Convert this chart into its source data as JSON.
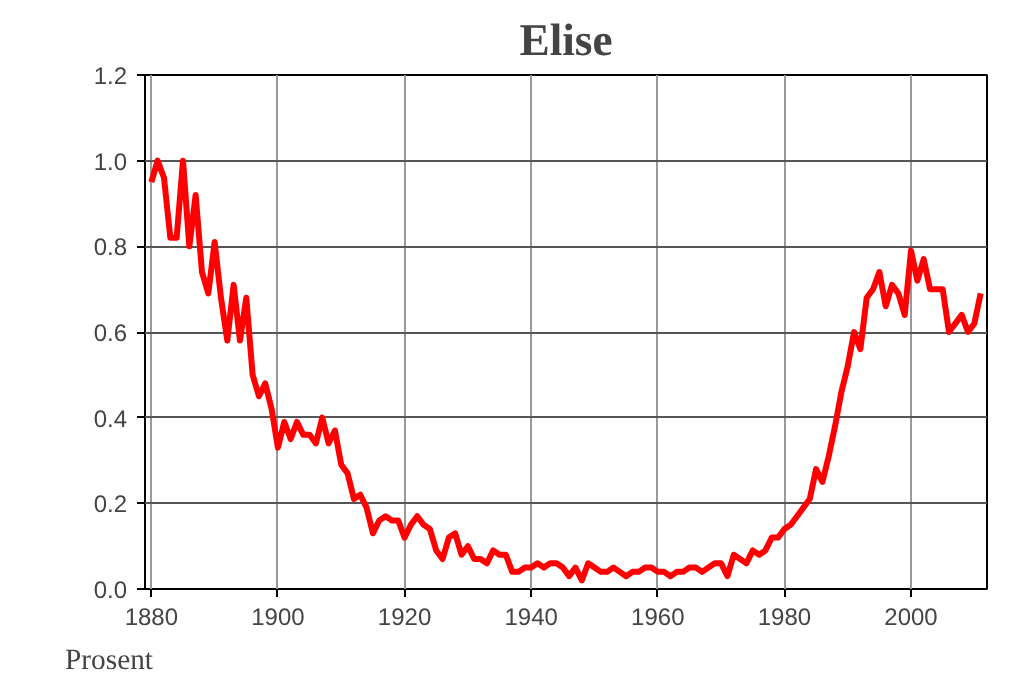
{
  "chart_data": {
    "type": "line",
    "title": "Elise",
    "ylabel": "Prosent",
    "x": [
      1880,
      1881,
      1882,
      1883,
      1884,
      1885,
      1886,
      1887,
      1888,
      1889,
      1890,
      1891,
      1892,
      1893,
      1894,
      1895,
      1896,
      1897,
      1898,
      1899,
      1900,
      1901,
      1902,
      1903,
      1904,
      1905,
      1906,
      1907,
      1908,
      1909,
      1910,
      1911,
      1912,
      1913,
      1914,
      1915,
      1916,
      1917,
      1918,
      1919,
      1920,
      1921,
      1922,
      1923,
      1924,
      1925,
      1926,
      1927,
      1928,
      1929,
      1930,
      1931,
      1932,
      1933,
      1934,
      1935,
      1936,
      1937,
      1938,
      1939,
      1940,
      1941,
      1942,
      1943,
      1944,
      1945,
      1946,
      1947,
      1948,
      1949,
      1950,
      1951,
      1952,
      1953,
      1954,
      1955,
      1956,
      1957,
      1958,
      1959,
      1960,
      1961,
      1962,
      1963,
      1964,
      1965,
      1966,
      1967,
      1968,
      1969,
      1970,
      1971,
      1972,
      1973,
      1974,
      1975,
      1976,
      1977,
      1978,
      1979,
      1980,
      1981,
      1982,
      1983,
      1984,
      1985,
      1986,
      1987,
      1988,
      1989,
      1990,
      1991,
      1992,
      1993,
      1994,
      1995,
      1996,
      1997,
      1998,
      1999,
      2000,
      2001,
      2002,
      2003,
      2004,
      2005,
      2006,
      2007,
      2008,
      2009,
      2010,
      2011
    ],
    "series": [
      {
        "color": "#ff0000",
        "values": [
          0.95,
          1.0,
          0.96,
          0.82,
          0.82,
          1.0,
          0.8,
          0.92,
          0.74,
          0.69,
          0.81,
          0.68,
          0.58,
          0.71,
          0.58,
          0.68,
          0.5,
          0.45,
          0.48,
          0.42,
          0.33,
          0.39,
          0.35,
          0.39,
          0.36,
          0.36,
          0.34,
          0.4,
          0.34,
          0.37,
          0.29,
          0.27,
          0.21,
          0.22,
          0.19,
          0.13,
          0.16,
          0.17,
          0.16,
          0.16,
          0.12,
          0.15,
          0.17,
          0.15,
          0.14,
          0.09,
          0.07,
          0.12,
          0.13,
          0.08,
          0.1,
          0.07,
          0.07,
          0.06,
          0.09,
          0.08,
          0.08,
          0.04,
          0.04,
          0.05,
          0.05,
          0.06,
          0.05,
          0.06,
          0.06,
          0.05,
          0.03,
          0.05,
          0.02,
          0.06,
          0.05,
          0.04,
          0.04,
          0.05,
          0.04,
          0.03,
          0.04,
          0.04,
          0.05,
          0.05,
          0.04,
          0.04,
          0.03,
          0.04,
          0.04,
          0.05,
          0.05,
          0.04,
          0.05,
          0.06,
          0.06,
          0.03,
          0.08,
          0.07,
          0.06,
          0.09,
          0.08,
          0.09,
          0.12,
          0.12,
          0.14,
          0.15,
          0.17,
          0.19,
          0.21,
          0.28,
          0.25,
          0.31,
          0.38,
          0.46,
          0.52,
          0.6,
          0.56,
          0.68,
          0.7,
          0.74,
          0.66,
          0.71,
          0.69,
          0.64,
          0.79,
          0.72,
          0.77,
          0.7,
          0.7,
          0.7,
          0.6,
          0.62,
          0.64,
          0.6,
          0.62,
          0.69
        ]
      }
    ],
    "xlim": [
      1879,
      2012
    ],
    "ylim": [
      0,
      1.2
    ],
    "xticks": [
      1880,
      1900,
      1920,
      1940,
      1960,
      1980,
      2000
    ],
    "yticks": [
      {
        "value": 0,
        "label": "0.0"
      },
      {
        "value": 0.2,
        "label": "0.2"
      },
      {
        "value": 0.4,
        "label": "0.4"
      },
      {
        "value": 0.6,
        "label": "0.6"
      },
      {
        "value": 0.8,
        "label": "0.8"
      },
      {
        "value": 1.0,
        "label": "1.0"
      },
      {
        "value": 1.2,
        "label": "1.2"
      }
    ],
    "grid": true,
    "line_style": "solid",
    "marker": "none"
  }
}
